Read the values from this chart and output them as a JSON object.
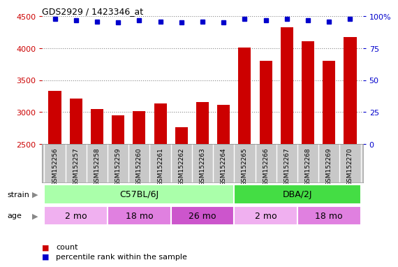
{
  "title": "GDS2929 / 1423346_at",
  "samples": [
    "GSM152256",
    "GSM152257",
    "GSM152258",
    "GSM152259",
    "GSM152260",
    "GSM152261",
    "GSM152262",
    "GSM152263",
    "GSM152264",
    "GSM152265",
    "GSM152266",
    "GSM152267",
    "GSM152268",
    "GSM152269",
    "GSM152270"
  ],
  "counts": [
    3330,
    3210,
    3040,
    2950,
    3010,
    3130,
    2760,
    3160,
    3110,
    4010,
    3800,
    4330,
    4110,
    3800,
    4170
  ],
  "percentile_ranks": [
    98,
    97,
    96,
    95,
    97,
    96,
    95,
    96,
    95,
    98,
    97,
    98,
    97,
    96,
    98
  ],
  "bar_color": "#cc0000",
  "dot_color": "#0000cc",
  "ylim_left": [
    2500,
    4500
  ],
  "ylim_right": [
    0,
    100
  ],
  "yticks_left": [
    2500,
    3000,
    3500,
    4000,
    4500
  ],
  "yticks_right": [
    0,
    25,
    50,
    75,
    100
  ],
  "strain_groups": [
    {
      "label": "C57BL/6J",
      "start": 0,
      "end": 9,
      "color": "#aaffaa"
    },
    {
      "label": "DBA/2J",
      "start": 9,
      "end": 15,
      "color": "#44dd44"
    }
  ],
  "age_groups": [
    {
      "label": "2 mo",
      "start": 0,
      "end": 3,
      "color": "#f0b0f0"
    },
    {
      "label": "18 mo",
      "start": 3,
      "end": 6,
      "color": "#e080e0"
    },
    {
      "label": "26 mo",
      "start": 6,
      "end": 9,
      "color": "#cc55cc"
    },
    {
      "label": "2 mo",
      "start": 9,
      "end": 12,
      "color": "#f0b0f0"
    },
    {
      "label": "18 mo",
      "start": 12,
      "end": 15,
      "color": "#e080e0"
    }
  ],
  "xtick_bg": "#c8c8c8",
  "axis_bg": "#ffffff",
  "grid_color": "#888888",
  "left_label_color": "#cc0000",
  "right_label_color": "#0000cc",
  "label_color": "#888888"
}
